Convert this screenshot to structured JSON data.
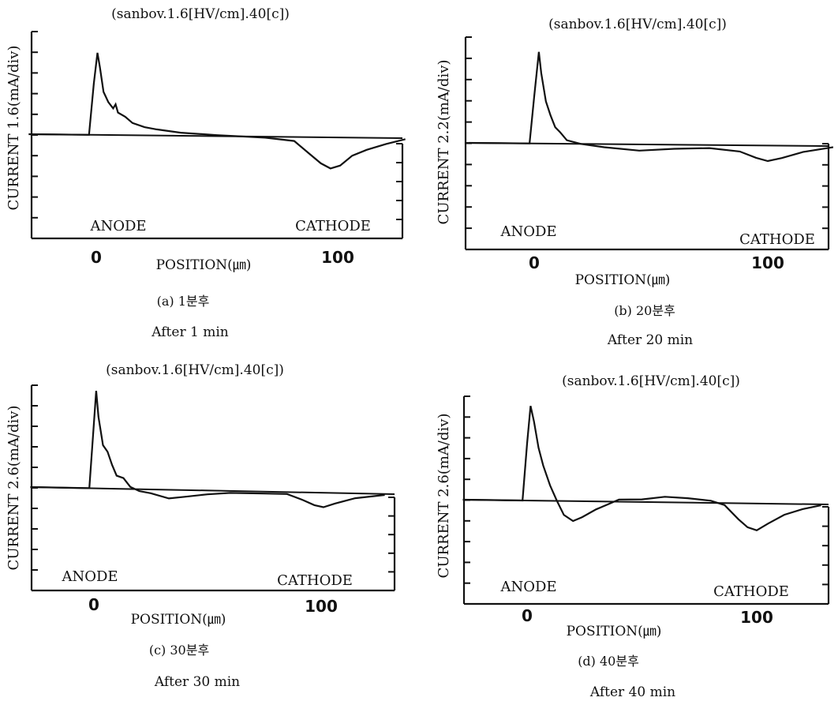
{
  "colors": {
    "trace": "#111111",
    "background": "#ffffff"
  },
  "chart_data": [
    {
      "type": "line",
      "title": "(sanbov.1.6[HV/cm].40[c])",
      "ylabel": "CURRENT 1.6(mA/div)",
      "xlabel": "POSITION(㎛)",
      "xticks": [
        "0",
        "100"
      ],
      "anode_label": "ANODE",
      "cathode_label": "CATHODE",
      "caption_kr": "(a) 1분후",
      "caption_en": "After 1 min",
      "xlim": [
        -28,
        128
      ],
      "ylim": [
        -5,
        5
      ],
      "grid": false,
      "series": [
        {
          "values": [
            [
              -28,
              0
            ],
            [
              -3,
              0
            ],
            [
              -1,
              2.5
            ],
            [
              0.5,
              4.0
            ],
            [
              1.5,
              3.3
            ],
            [
              3,
              2.1
            ],
            [
              5,
              1.6
            ],
            [
              7,
              1.3
            ],
            [
              8,
              1.5
            ],
            [
              9,
              1.1
            ],
            [
              12,
              0.9
            ],
            [
              15,
              0.6
            ],
            [
              20,
              0.4
            ],
            [
              25,
              0.3
            ],
            [
              35,
              0.15
            ],
            [
              50,
              0.05
            ],
            [
              70,
              -0.05
            ],
            [
              82,
              -0.2
            ],
            [
              88,
              -0.8
            ],
            [
              93,
              -1.3
            ],
            [
              97,
              -1.55
            ],
            [
              101,
              -1.4
            ],
            [
              106,
              -0.9
            ],
            [
              112,
              -0.6
            ],
            [
              120,
              -0.3
            ],
            [
              128,
              -0.05
            ]
          ]
        }
      ]
    },
    {
      "type": "line",
      "title": "(sanbov.1.6[HV/cm].40[c])",
      "ylabel": "CURRENT 2.2(mA/div)",
      "xlabel": "POSITION(㎛)",
      "xticks": [
        "0",
        "100"
      ],
      "anode_label": "ANODE",
      "cathode_label": "CATHODE",
      "caption_kr": "(b) 20분후",
      "caption_en": "After 20 min",
      "xlim": [
        -28,
        128
      ],
      "ylim": [
        -5,
        4.5
      ],
      "grid": false,
      "series": [
        {
          "values": [
            [
              -28,
              0
            ],
            [
              -2,
              0
            ],
            [
              0,
              2.0
            ],
            [
              2,
              3.9
            ],
            [
              3,
              3.0
            ],
            [
              5,
              1.8
            ],
            [
              7,
              1.2
            ],
            [
              9,
              0.7
            ],
            [
              11,
              0.5
            ],
            [
              14,
              0.15
            ],
            [
              20,
              0
            ],
            [
              30,
              -0.15
            ],
            [
              45,
              -0.3
            ],
            [
              60,
              -0.2
            ],
            [
              75,
              -0.15
            ],
            [
              88,
              -0.3
            ],
            [
              95,
              -0.6
            ],
            [
              100,
              -0.75
            ],
            [
              106,
              -0.6
            ],
            [
              115,
              -0.3
            ],
            [
              128,
              -0.05
            ]
          ]
        }
      ]
    },
    {
      "type": "line",
      "title": "(sanbov.1.6[HV/cm].40[c])",
      "ylabel": "CURRENT 2.6(mA/div)",
      "xlabel": "POSITION(㎛)",
      "xticks": [
        "0",
        "100"
      ],
      "anode_label": "ANODE",
      "cathode_label": "CATHODE",
      "caption_kr": "(c) 30분후",
      "caption_en": "After 30 min",
      "xlim": [
        -28,
        128
      ],
      "ylim": [
        -5,
        4.7
      ],
      "grid": false,
      "series": [
        {
          "values": [
            [
              -28,
              0
            ],
            [
              -2,
              0
            ],
            [
              0,
              3.0
            ],
            [
              1,
              4.5
            ],
            [
              2,
              3.3
            ],
            [
              4,
              2.0
            ],
            [
              6,
              1.7
            ],
            [
              8,
              1.1
            ],
            [
              10,
              0.6
            ],
            [
              13,
              0.5
            ],
            [
              16,
              0.1
            ],
            [
              20,
              -0.1
            ],
            [
              25,
              -0.2
            ],
            [
              33,
              -0.45
            ],
            [
              40,
              -0.35
            ],
            [
              50,
              -0.2
            ],
            [
              60,
              -0.1
            ],
            [
              75,
              -0.1
            ],
            [
              85,
              -0.1
            ],
            [
              92,
              -0.4
            ],
            [
              97,
              -0.65
            ],
            [
              101,
              -0.75
            ],
            [
              106,
              -0.55
            ],
            [
              115,
              -0.25
            ],
            [
              128,
              -0.05
            ]
          ]
        }
      ]
    },
    {
      "type": "line",
      "title": "(sanbov.1.6[HV/cm].40[c])",
      "ylabel": "CURRENT 2.6(mA/div)",
      "xlabel": "POSITION(㎛)",
      "xticks": [
        "0",
        "100"
      ],
      "anode_label": "ANODE",
      "cathode_label": "CATHODE",
      "caption_kr": "(d) 40분후",
      "caption_en": "After 40 min",
      "xlim": [
        -28,
        128
      ],
      "ylim": [
        -5,
        4.7
      ],
      "grid": false,
      "series": [
        {
          "values": [
            [
              -28,
              0
            ],
            [
              -2,
              0
            ],
            [
              0,
              2.6
            ],
            [
              1.5,
              4.3
            ],
            [
              3,
              3.6
            ],
            [
              5,
              2.4
            ],
            [
              7,
              1.6
            ],
            [
              10,
              0.7
            ],
            [
              13,
              0
            ],
            [
              16,
              -0.7
            ],
            [
              20,
              -1.0
            ],
            [
              24,
              -0.8
            ],
            [
              30,
              -0.4
            ],
            [
              35,
              -0.15
            ],
            [
              40,
              0.1
            ],
            [
              50,
              0.12
            ],
            [
              60,
              0.25
            ],
            [
              70,
              0.2
            ],
            [
              80,
              0.1
            ],
            [
              86,
              -0.1
            ],
            [
              92,
              -0.8
            ],
            [
              96,
              -1.2
            ],
            [
              100,
              -1.35
            ],
            [
              105,
              -1.0
            ],
            [
              112,
              -0.55
            ],
            [
              120,
              -0.25
            ],
            [
              128,
              -0.05
            ]
          ]
        }
      ]
    }
  ]
}
